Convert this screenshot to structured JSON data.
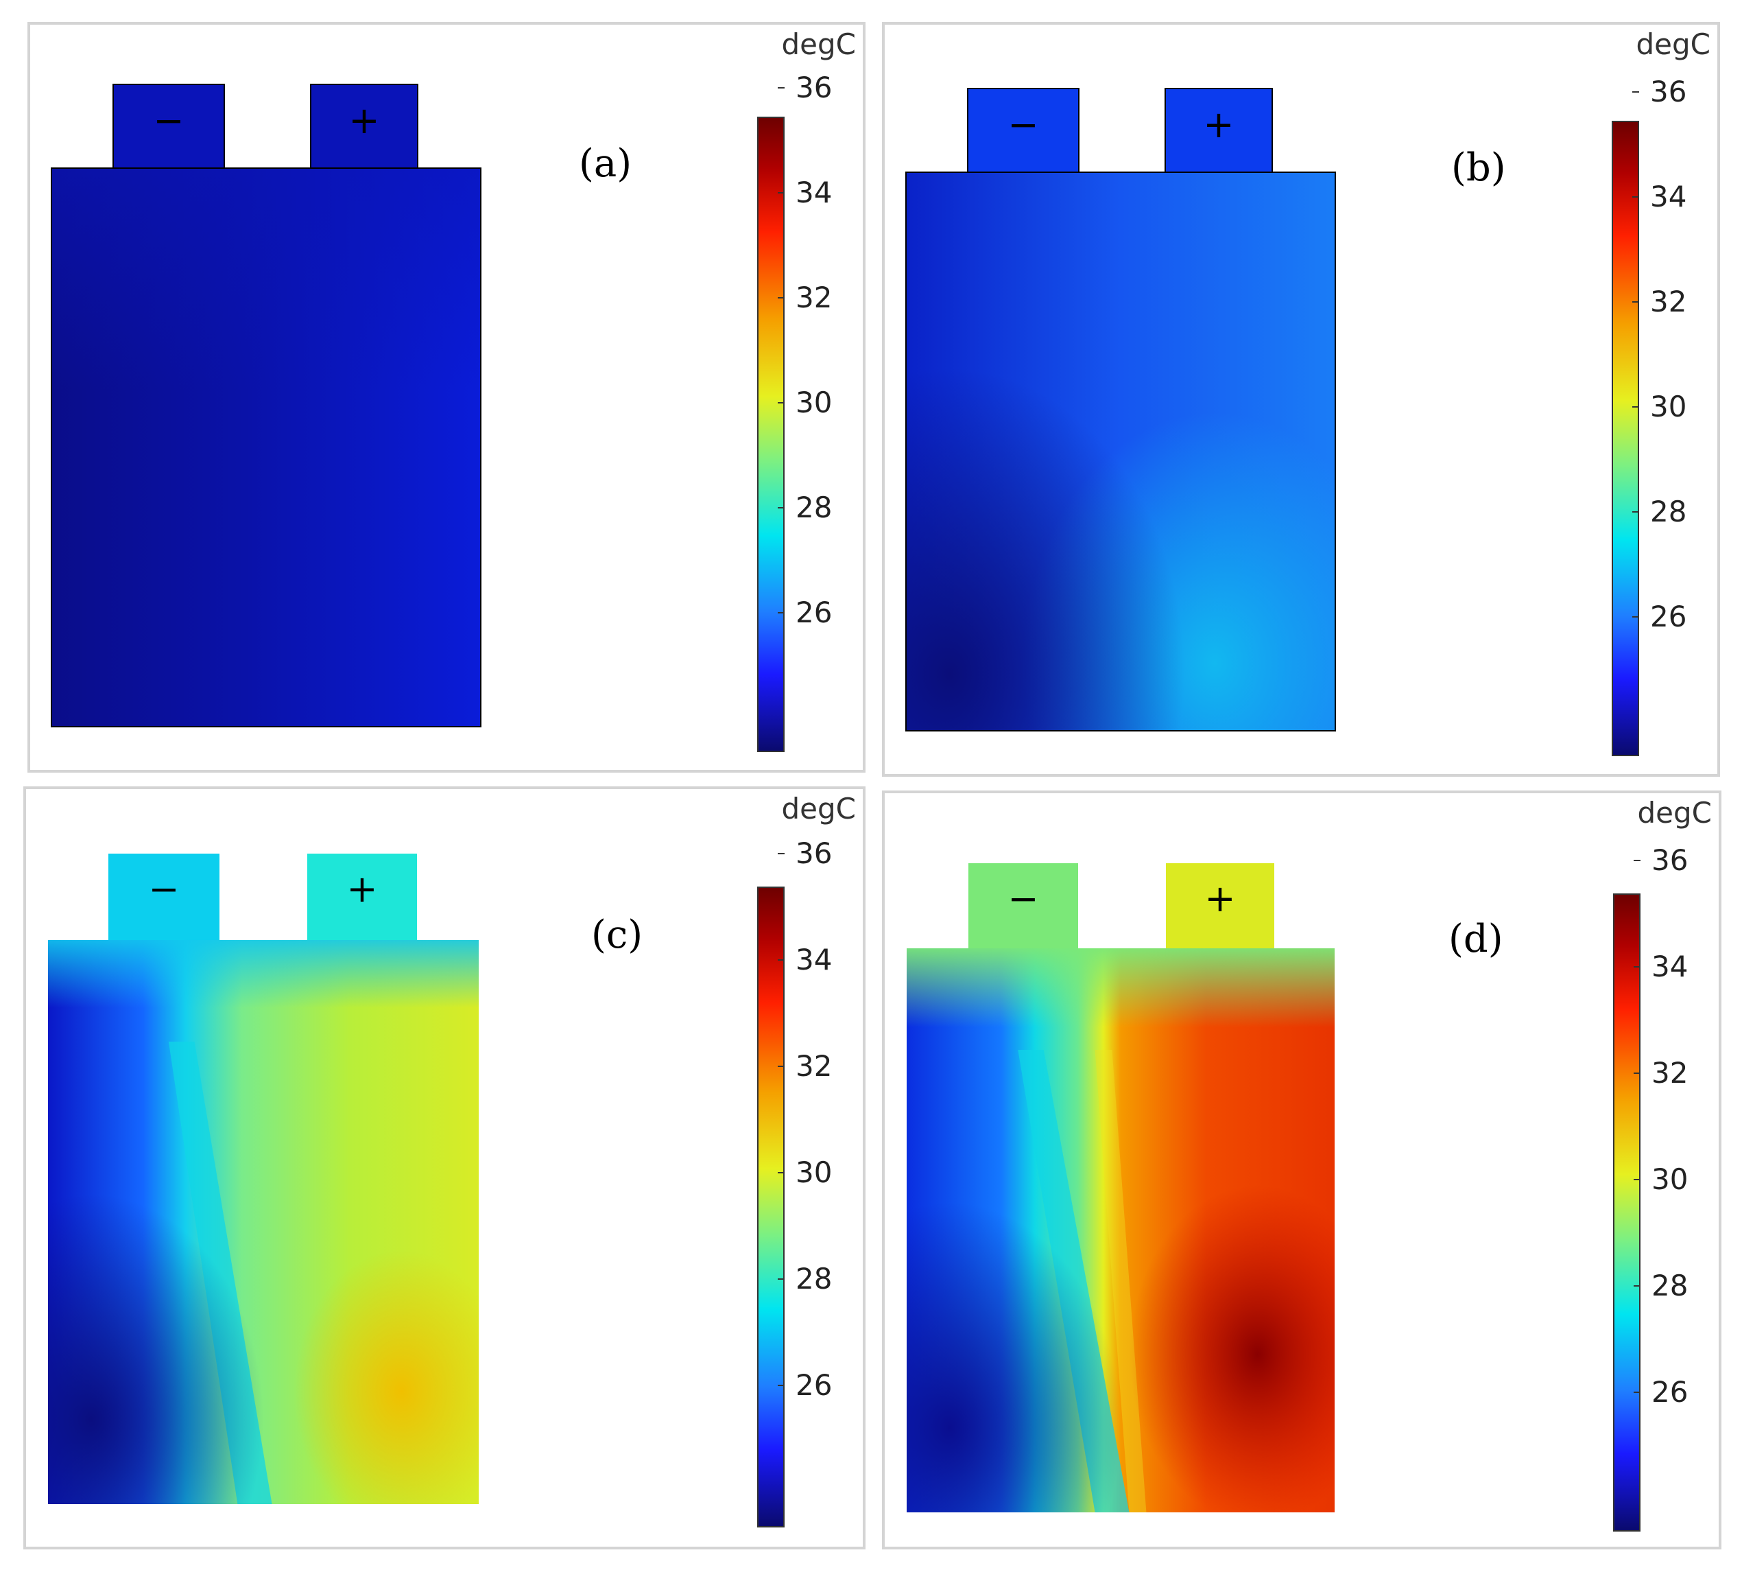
{
  "unit_label": "degC",
  "colorbar": {
    "min": 24.8,
    "max": 37.0,
    "ticks": [
      "26",
      "28",
      "30",
      "32",
      "34",
      "36"
    ],
    "tick_values": [
      26,
      28,
      30,
      32,
      34,
      36
    ],
    "colormap": [
      "#0a0a6e",
      "#1a1aff",
      "#1f7fff",
      "#00e5f0",
      "#7ff07f",
      "#e6f020",
      "#f5a000",
      "#ff2000",
      "#b00000",
      "#6e0000"
    ]
  },
  "terminals": {
    "negative": "−",
    "positive": "+"
  },
  "panels": [
    {
      "label": "(a)",
      "tab_neg_color": "#0a14b8",
      "tab_pos_color": "#0a14b8"
    },
    {
      "label": "(b)",
      "tab_neg_color": "#0c3cee",
      "tab_pos_color": "#0c3cee"
    },
    {
      "label": "(c)",
      "tab_neg_color": "#0ccfee",
      "tab_pos_color": "#1ee6d8"
    },
    {
      "label": "(d)",
      "tab_neg_color": "#7be878",
      "tab_pos_color": "#dbea22"
    }
  ]
}
